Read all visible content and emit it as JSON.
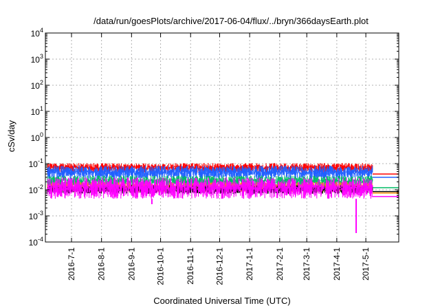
{
  "chart_data": {
    "type": "line",
    "title": "/data/run/goesPlots/archive/2017-06-04/flux/../bryn/366daysEarth.plot",
    "xlabel": "Coordinated Universal Time (UTC)",
    "ylabel": "cSv/day",
    "yscale": "log",
    "ylim": [
      0.0001,
      10000
    ],
    "y_ticks": [
      {
        "base": "10",
        "exp": "-4"
      },
      {
        "base": "10",
        "exp": "-3"
      },
      {
        "base": "10",
        "exp": "-2"
      },
      {
        "base": "10",
        "exp": "-1"
      },
      {
        "base": "10",
        "exp": "0"
      },
      {
        "base": "10",
        "exp": "1"
      },
      {
        "base": "10",
        "exp": "2"
      },
      {
        "base": "10",
        "exp": "3"
      },
      {
        "base": "10",
        "exp": "4"
      }
    ],
    "xlim": [
      "2016-06-04",
      "2017-06-04"
    ],
    "x_ticks": [
      "2016-7-1",
      "2016-8-1",
      "2016-9-1",
      "2016-10-1",
      "2016-11-1",
      "2016-12-1",
      "2017-1-1",
      "2017-2-1",
      "2017-3-1",
      "2017-4-1",
      "2017-5-1"
    ],
    "x_tick_dates": [
      "2016-07-01",
      "2016-08-01",
      "2016-09-01",
      "2016-10-01",
      "2016-11-01",
      "2016-12-01",
      "2017-01-01",
      "2017-02-01",
      "2017-03-01",
      "2017-04-01",
      "2017-05-01"
    ],
    "grid": true,
    "data_end": "2017-05-08",
    "series": [
      {
        "color": "#ff0000",
        "band": [
          0.045,
          0.105
        ],
        "last": 0.04
      },
      {
        "color": "#2060ff",
        "band": [
          0.025,
          0.085
        ],
        "last": 0.03
      },
      {
        "color": "#00bb66",
        "band": [
          0.012,
          0.035
        ],
        "last": 0.012
      },
      {
        "color": "#ff8c00",
        "band": [
          0.008,
          0.02
        ],
        "last": 0.0075
      },
      {
        "color": "#000000",
        "band": [
          0.007,
          0.015
        ],
        "last": 0.0085
      },
      {
        "color": "#ff00ff",
        "band": [
          0.0045,
          0.03
        ],
        "last": 0.0055
      }
    ],
    "dips": [
      {
        "date": "2016-09-22",
        "value": 0.0028
      },
      {
        "date": "2017-04-21",
        "value": 0.00022
      }
    ]
  }
}
